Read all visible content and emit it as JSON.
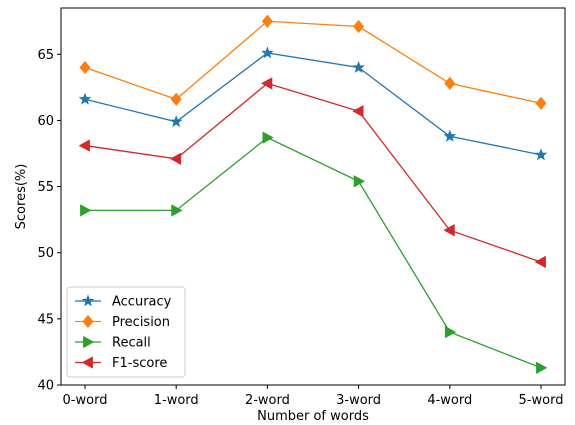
{
  "chart_data": {
    "type": "line",
    "title": "",
    "xlabel": "Number of words",
    "ylabel": "Scores(%)",
    "categories": [
      "0-word",
      "1-word",
      "2-word",
      "3-word",
      "4-word",
      "5-word"
    ],
    "ylim": [
      40,
      68.5
    ],
    "yticks": [
      40,
      45,
      50,
      55,
      60,
      65
    ],
    "grid": false,
    "legend_position": "lower-left",
    "series": [
      {
        "name": "Accuracy",
        "color": "#1f77b4",
        "marker": "star",
        "values": [
          61.6,
          59.9,
          65.1,
          64.0,
          58.8,
          57.4
        ]
      },
      {
        "name": "Precision",
        "color": "#ff7f0e",
        "marker": "diamond",
        "values": [
          64.0,
          61.6,
          67.5,
          67.1,
          62.8,
          61.3
        ]
      },
      {
        "name": "Recall",
        "color": "#2ca02c",
        "marker": "triangle-right",
        "values": [
          53.2,
          53.2,
          58.7,
          55.4,
          44.0,
          41.3
        ]
      },
      {
        "name": "F1-score",
        "color": "#d62728",
        "marker": "triangle-left",
        "values": [
          58.1,
          57.1,
          62.8,
          60.7,
          51.7,
          49.3
        ]
      }
    ]
  }
}
